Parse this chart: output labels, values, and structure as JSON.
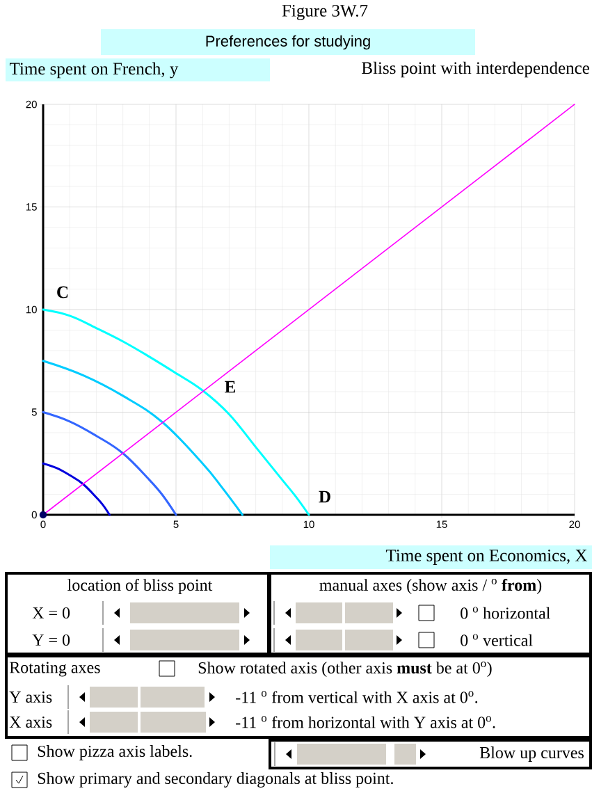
{
  "chart_data": {
    "type": "line",
    "title": "Figure 3W.7",
    "subtitle": "Preferences for studying",
    "ylabel": "Time spent on French, y",
    "xlabel": "Time spent on Economics, X",
    "xlim": [
      0,
      20
    ],
    "ylim": [
      0,
      20
    ],
    "xticks": [
      0,
      5,
      10,
      15,
      20
    ],
    "yticks": [
      0,
      5,
      10,
      15,
      20
    ],
    "grid": true,
    "series": [
      {
        "color": "#0000dd",
        "x": [
          0,
          0.5,
          1,
          1.5,
          2,
          2.25,
          2.5
        ],
        "values": [
          2.5,
          2.28,
          1.93,
          1.5,
          0.85,
          0.48,
          0
        ]
      },
      {
        "color": "#3366ff",
        "x": [
          0,
          1,
          2,
          3,
          4,
          4.5,
          5
        ],
        "values": [
          5,
          4.55,
          3.85,
          3.0,
          1.7,
          0.95,
          0
        ]
      },
      {
        "color": "#00ccff",
        "x": [
          0,
          1.5,
          3,
          4.5,
          6,
          6.75,
          7.5
        ],
        "values": [
          7.5,
          6.8,
          5.8,
          4.5,
          2.5,
          1.3,
          0
        ]
      },
      {
        "color": "#00ffff",
        "x": [
          0,
          1,
          2,
          3,
          4,
          5,
          6,
          7,
          8,
          9,
          9.5,
          10
        ],
        "values": [
          10,
          9.7,
          9.1,
          8.45,
          7.7,
          6.9,
          6.06,
          4.9,
          3.3,
          1.7,
          0.9,
          0
        ]
      },
      {
        "color": "#ff00ff",
        "x": [
          0,
          20
        ],
        "values": [
          0,
          20
        ]
      },
      {
        "type": "scatter",
        "marker": "circle",
        "color": "#000066",
        "x": [
          0
        ],
        "values": [
          0
        ]
      }
    ],
    "annotations": [
      {
        "text": "C",
        "x": 0,
        "y": 10
      },
      {
        "text": "E",
        "x": 6.1,
        "y": 6.1
      },
      {
        "text": "D",
        "x": 10,
        "y": 0
      },
      "Bliss point with interdependence",
      "location of bliss point",
      "X = 0",
      "Y = 0",
      "manual axes (show axis / $^{o}$ **from**)",
      "0 $^{o}$ horizontal",
      "0 $^{o}$ vertical",
      "Rotating axes",
      "Show rotated axis (other axis **must** be at 0$^{o}$)",
      "Y axis",
      "-11 $^{o}$ from vertical with X axis at 0$^{o}$.",
      "X axis",
      "-11 $^{o}$ from horizontal with Y axis at 0$^{o}$.",
      "Show pizza axis labels.",
      "Blow up curves",
      "Show primary and secondary diagonals at bliss point."
    ]
  }
}
